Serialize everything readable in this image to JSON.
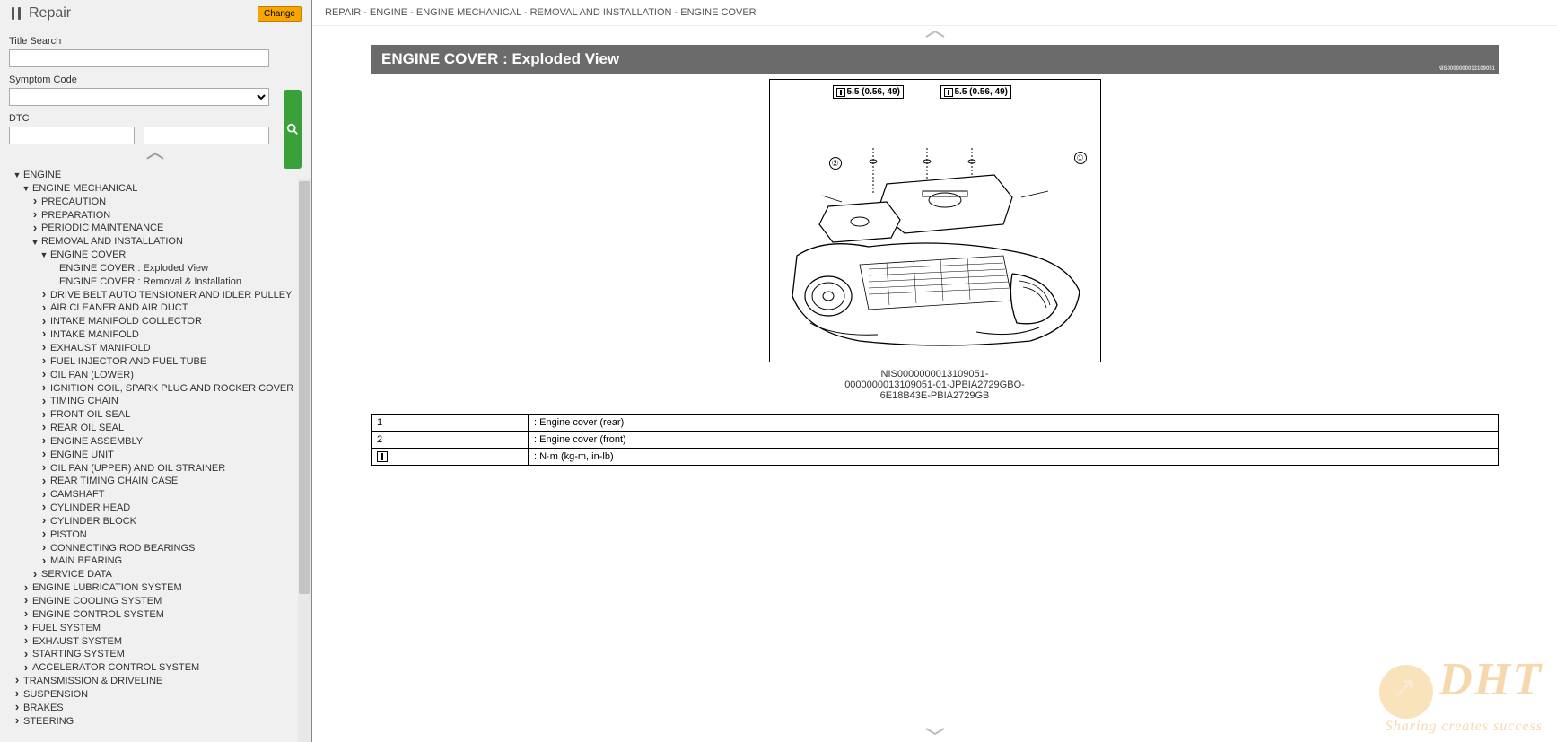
{
  "header": {
    "title": "Repair",
    "change_btn": "Change"
  },
  "search": {
    "title_label": "Title Search",
    "symptom_label": "Symptom Code",
    "dtc_label": "DTC",
    "search_icon": "magnifier"
  },
  "tree": [
    {
      "label": "ENGINE",
      "arrow": "down",
      "indent": 1,
      "children": [
        {
          "label": "ENGINE MECHANICAL",
          "arrow": "down",
          "indent": 2,
          "children": [
            {
              "label": "PRECAUTION",
              "arrow": "right",
              "indent": 3
            },
            {
              "label": "PREPARATION",
              "arrow": "right",
              "indent": 3
            },
            {
              "label": "PERIODIC MAINTENANCE",
              "arrow": "right",
              "indent": 3
            },
            {
              "label": "REMOVAL AND INSTALLATION",
              "arrow": "down",
              "indent": 3,
              "children": [
                {
                  "label": "ENGINE COVER",
                  "arrow": "down",
                  "indent": 4,
                  "children": [
                    {
                      "label": "ENGINE COVER : Exploded View",
                      "arrow": "",
                      "indent": 5
                    },
                    {
                      "label": "ENGINE COVER : Removal & Installation",
                      "arrow": "",
                      "indent": 5
                    }
                  ]
                },
                {
                  "label": "DRIVE BELT AUTO TENSIONER AND IDLER PULLEY",
                  "arrow": "right",
                  "indent": 4
                },
                {
                  "label": "AIR CLEANER AND AIR DUCT",
                  "arrow": "right",
                  "indent": 4
                },
                {
                  "label": "INTAKE MANIFOLD COLLECTOR",
                  "arrow": "right",
                  "indent": 4
                },
                {
                  "label": "INTAKE MANIFOLD",
                  "arrow": "right",
                  "indent": 4
                },
                {
                  "label": "EXHAUST MANIFOLD",
                  "arrow": "right",
                  "indent": 4
                },
                {
                  "label": "FUEL INJECTOR AND FUEL TUBE",
                  "arrow": "right",
                  "indent": 4
                },
                {
                  "label": "OIL PAN (LOWER)",
                  "arrow": "right",
                  "indent": 4
                },
                {
                  "label": "IGNITION COIL, SPARK PLUG AND ROCKER COVER",
                  "arrow": "right",
                  "indent": 4
                },
                {
                  "label": "TIMING CHAIN",
                  "arrow": "right",
                  "indent": 4
                },
                {
                  "label": "FRONT OIL SEAL",
                  "arrow": "right",
                  "indent": 4
                },
                {
                  "label": "REAR OIL SEAL",
                  "arrow": "right",
                  "indent": 4
                },
                {
                  "label": "ENGINE ASSEMBLY",
                  "arrow": "right",
                  "indent": 4
                },
                {
                  "label": "ENGINE UNIT",
                  "arrow": "right",
                  "indent": 4
                },
                {
                  "label": "OIL PAN (UPPER) AND OIL STRAINER",
                  "arrow": "right",
                  "indent": 4
                },
                {
                  "label": "REAR TIMING CHAIN CASE",
                  "arrow": "right",
                  "indent": 4
                },
                {
                  "label": "CAMSHAFT",
                  "arrow": "right",
                  "indent": 4
                },
                {
                  "label": "CYLINDER HEAD",
                  "arrow": "right",
                  "indent": 4
                },
                {
                  "label": "CYLINDER BLOCK",
                  "arrow": "right",
                  "indent": 4
                },
                {
                  "label": "PISTON",
                  "arrow": "right",
                  "indent": 4
                },
                {
                  "label": "CONNECTING ROD BEARINGS",
                  "arrow": "right",
                  "indent": 4
                },
                {
                  "label": "MAIN BEARING",
                  "arrow": "right",
                  "indent": 4
                }
              ]
            },
            {
              "label": "SERVICE DATA",
              "arrow": "right",
              "indent": 3
            }
          ]
        },
        {
          "label": "ENGINE LUBRICATION SYSTEM",
          "arrow": "right",
          "indent": 2
        },
        {
          "label": "ENGINE COOLING SYSTEM",
          "arrow": "right",
          "indent": 2
        },
        {
          "label": "ENGINE CONTROL SYSTEM",
          "arrow": "right",
          "indent": 2
        },
        {
          "label": "FUEL SYSTEM",
          "arrow": "right",
          "indent": 2
        },
        {
          "label": "EXHAUST SYSTEM",
          "arrow": "right",
          "indent": 2
        },
        {
          "label": "STARTING SYSTEM",
          "arrow": "right",
          "indent": 2
        },
        {
          "label": "ACCELERATOR CONTROL SYSTEM",
          "arrow": "right",
          "indent": 2
        }
      ]
    },
    {
      "label": "TRANSMISSION & DRIVELINE",
      "arrow": "right",
      "indent": 1
    },
    {
      "label": "SUSPENSION",
      "arrow": "right",
      "indent": 1
    },
    {
      "label": "BRAKES",
      "arrow": "right",
      "indent": 1
    },
    {
      "label": "STEERING",
      "arrow": "right",
      "indent": 1
    }
  ],
  "breadcrumb": "REPAIR - ENGINE - ENGINE MECHANICAL - REMOVAL AND INSTALLATION - ENGINE COVER",
  "content": {
    "title": "ENGINE COVER : Exploded View",
    "title_ref": "NIS0000000013109051",
    "torque1": "5.5 (0.56, 49)",
    "torque2": "5.5 (0.56, 49)",
    "callout1": "①",
    "callout2": "②",
    "diagram_id_1": "NIS0000000013109051-",
    "diagram_id_2": "0000000013109051-01-JPBIA2729GBO-",
    "diagram_id_3": "6E18B43E-PBIA2729GB",
    "table": [
      {
        "key": "1",
        "val": ": Engine cover (rear)"
      },
      {
        "key": "2",
        "val": ": Engine cover (front)"
      },
      {
        "key": "icon",
        "val": ": N·m (kg-m, in-lb)"
      }
    ]
  },
  "watermark": {
    "logo": "DHT",
    "tagline": "Sharing creates success"
  },
  "colors": {
    "sidebar_bg": "#f0f0f0",
    "change_btn": "#f7a600",
    "search_btn": "#3aa03a",
    "title_bar": "#6b6b6b",
    "watermark": "#f0b060"
  }
}
